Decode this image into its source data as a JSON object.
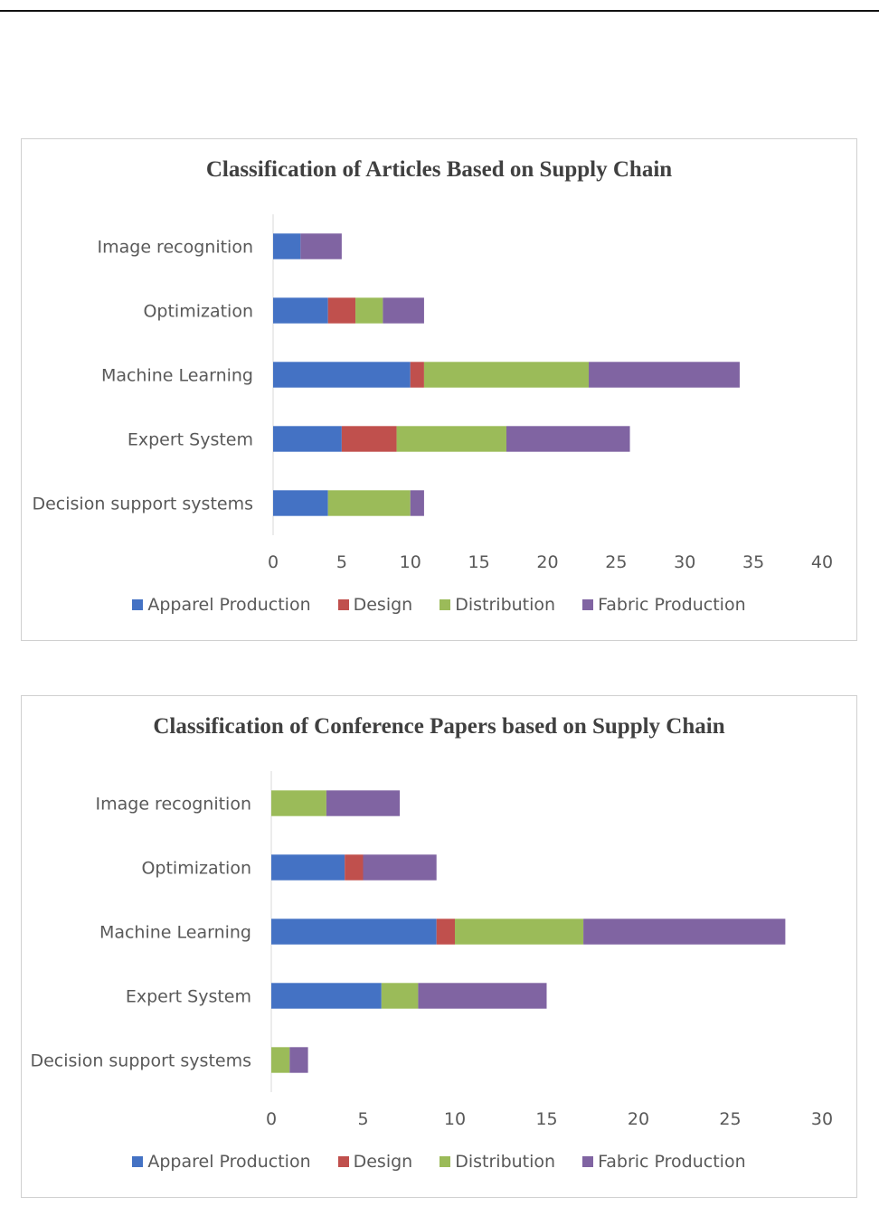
{
  "colors": {
    "Apparel Production": "#4472c4",
    "Design": "#c0504d",
    "Distribution": "#9bbb59",
    "Fabric Production": "#8064a2"
  },
  "chart_data": [
    {
      "type": "bar",
      "orientation": "horizontal",
      "stacked": true,
      "title": "Classification of Articles Based on Supply Chain",
      "categories": [
        "Image recognition",
        "Optimization",
        "Machine Learning",
        "Expert System",
        "Decision support systems"
      ],
      "series": [
        {
          "name": "Apparel Production",
          "values": [
            2,
            4,
            10,
            5,
            4
          ]
        },
        {
          "name": "Design",
          "values": [
            0,
            2,
            1,
            4,
            0
          ]
        },
        {
          "name": "Distribution",
          "values": [
            0,
            2,
            12,
            8,
            6
          ]
        },
        {
          "name": "Fabric Production",
          "values": [
            3,
            3,
            11,
            9,
            1
          ]
        }
      ],
      "xlim": [
        0,
        40
      ],
      "xticks": [
        "0",
        "5",
        "10",
        "15",
        "20",
        "25",
        "30",
        "35",
        "40"
      ],
      "legend": "bottom",
      "grid": false
    },
    {
      "type": "bar",
      "orientation": "horizontal",
      "stacked": true,
      "title": "Classification of Conference Papers based on Supply Chain",
      "categories": [
        "Image recognition",
        "Optimization",
        "Machine Learning",
        "Expert System",
        "Decision support systems"
      ],
      "series": [
        {
          "name": "Apparel Production",
          "values": [
            0,
            4,
            9,
            6,
            0
          ]
        },
        {
          "name": "Design",
          "values": [
            0,
            1,
            1,
            0,
            0
          ]
        },
        {
          "name": "Distribution",
          "values": [
            3,
            0,
            7,
            2,
            1
          ]
        },
        {
          "name": "Fabric Production",
          "values": [
            4,
            4,
            11,
            7,
            1
          ]
        }
      ],
      "xlim": [
        0,
        30
      ],
      "xticks": [
        "0",
        "5",
        "10",
        "15",
        "20",
        "25",
        "30"
      ],
      "legend": "bottom",
      "grid": false
    }
  ]
}
